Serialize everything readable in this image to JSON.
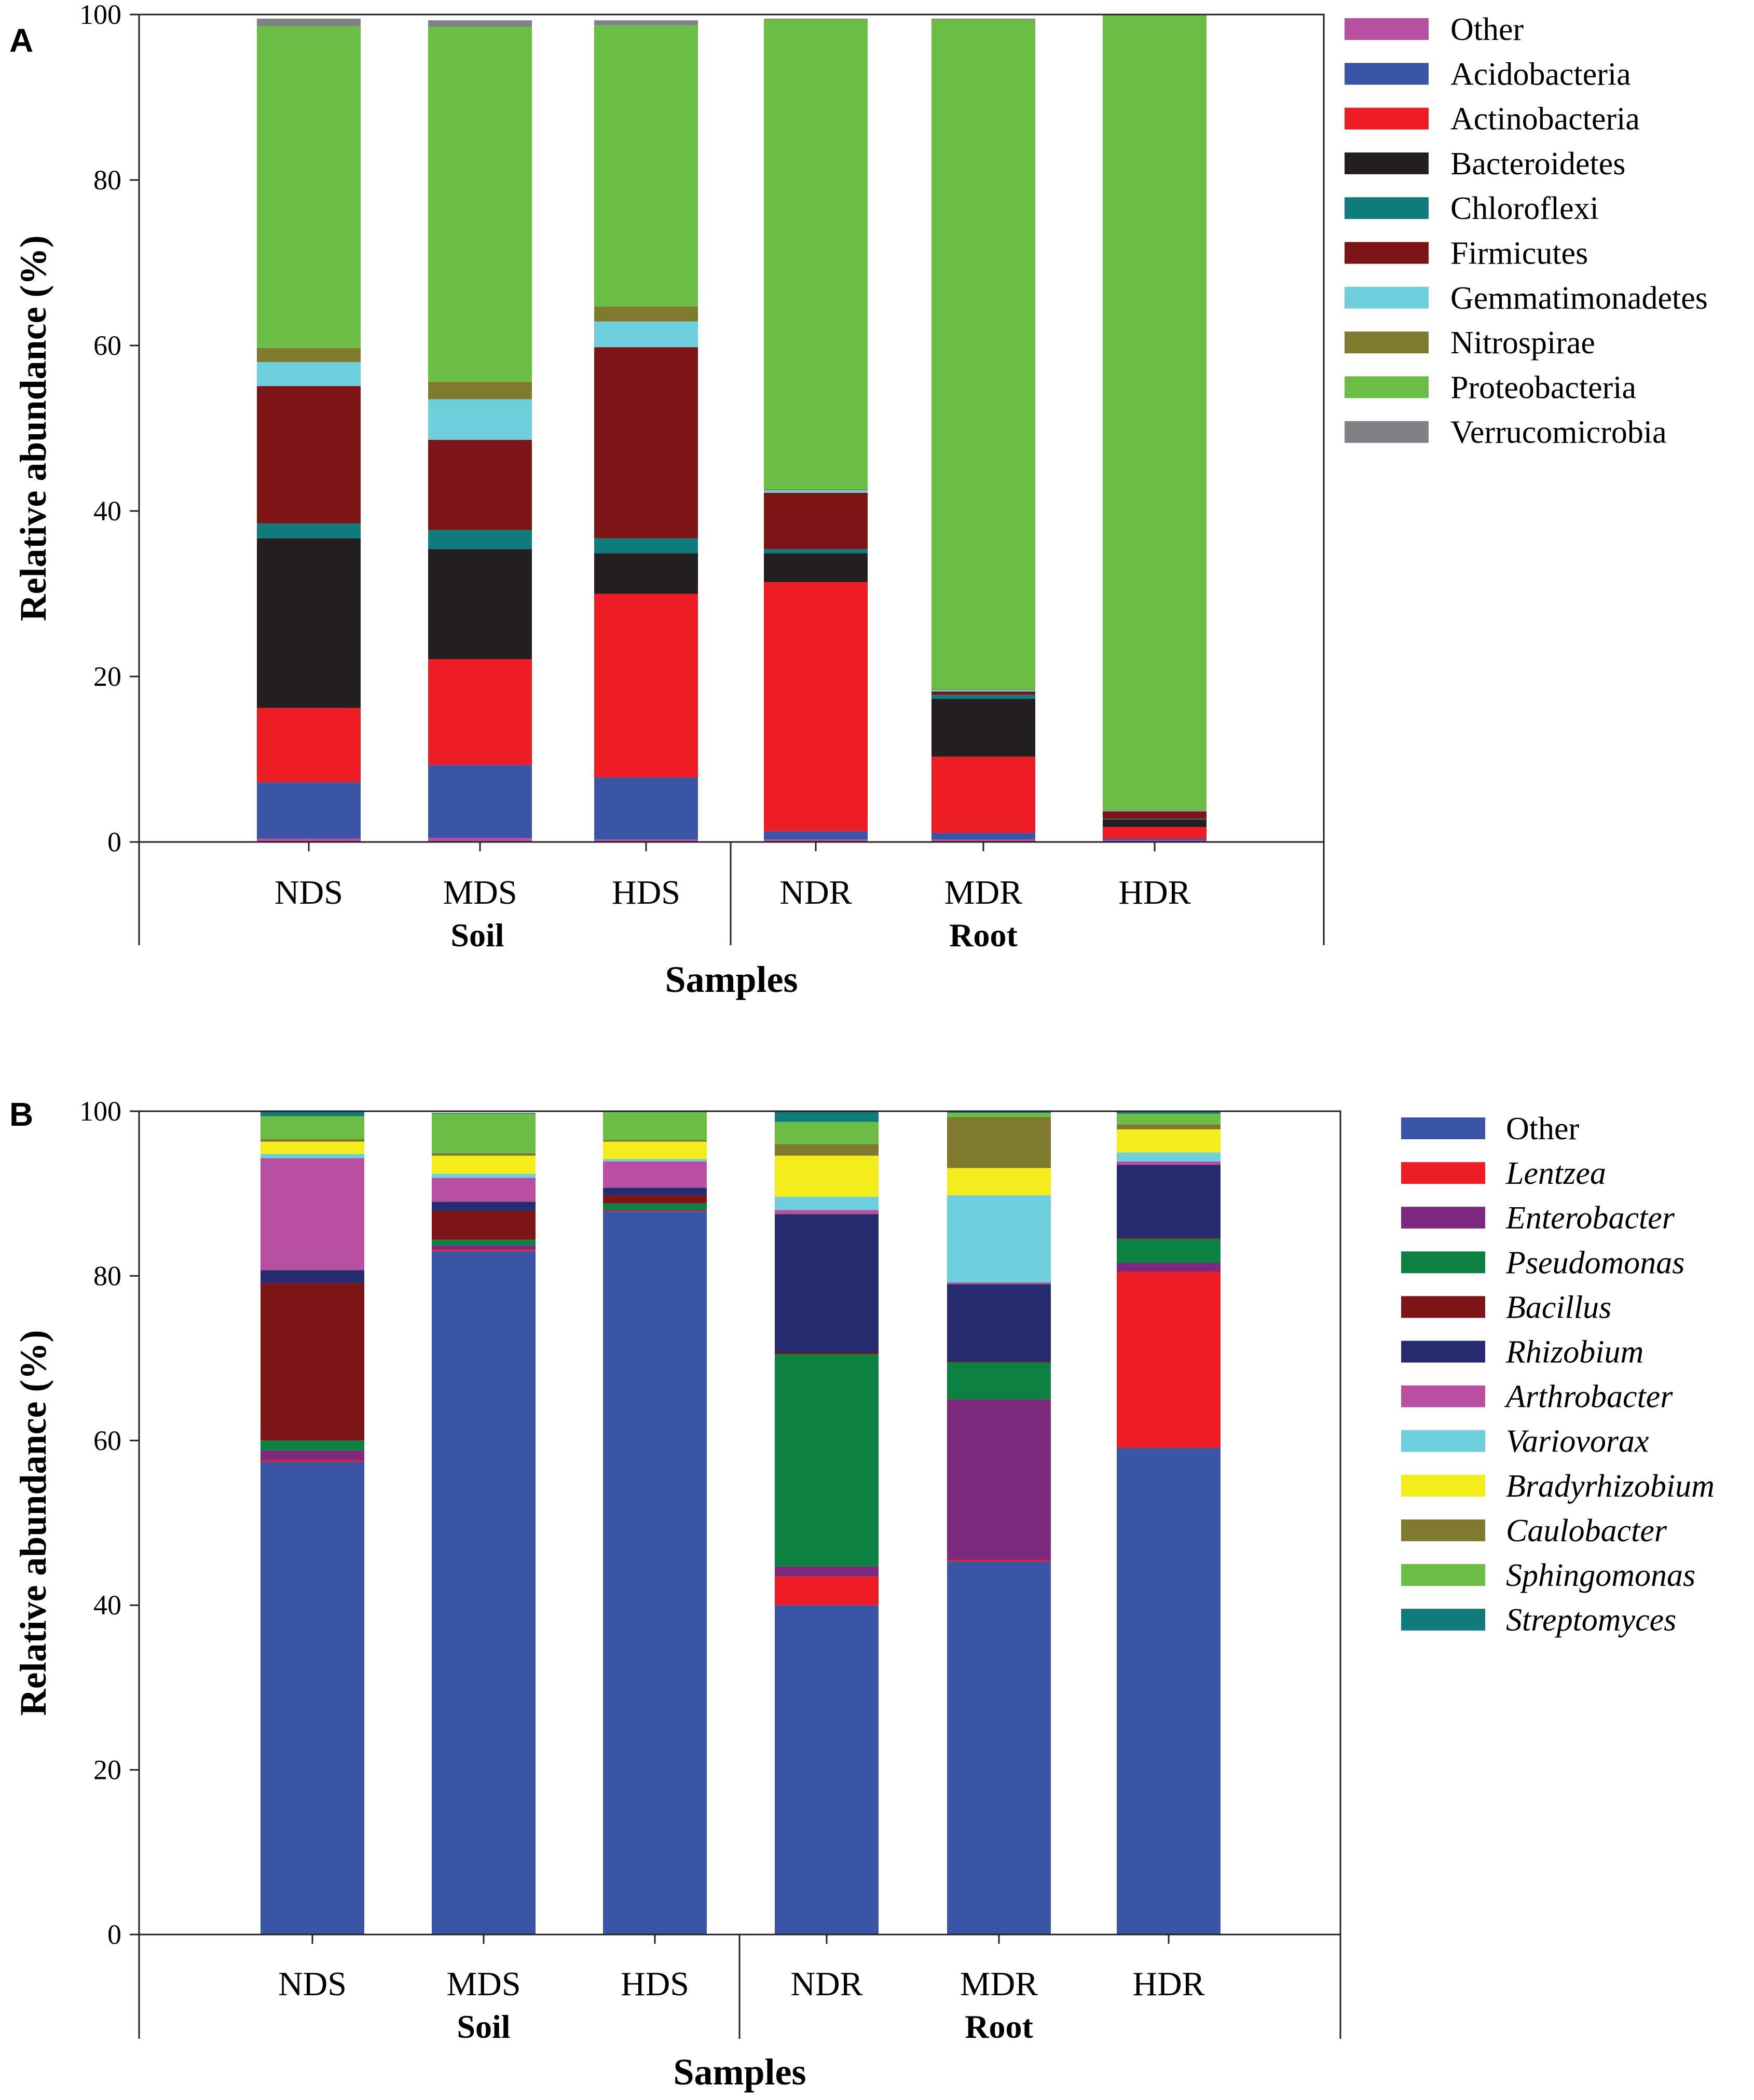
{
  "chart_data": [
    {
      "panel": "A",
      "type": "bar",
      "stacked": true,
      "ylabel": "Relative abundance (%)",
      "xlabel": "Samples",
      "ylim": [
        0,
        100
      ],
      "yticks": [
        0,
        20,
        40,
        60,
        80,
        100
      ],
      "categories": [
        "NDS",
        "MDS",
        "HDS",
        "NDR",
        "MDR",
        "HDR"
      ],
      "groups": [
        {
          "label": "Soil",
          "categories": [
            "NDS",
            "MDS",
            "HDS"
          ]
        },
        {
          "label": "Root",
          "categories": [
            "NDR",
            "MDR",
            "HDR"
          ]
        }
      ],
      "legend_position": "right",
      "series": [
        {
          "name": "Other",
          "italic": false,
          "color": "#b84fa0",
          "values": [
            0.4,
            0.5,
            0.3,
            0.3,
            0.3,
            0.2
          ]
        },
        {
          "name": "Acidobacteria",
          "italic": false,
          "color": "#3a55a6",
          "values": [
            6.8,
            8.8,
            7.5,
            1.0,
            0.8,
            0.2
          ]
        },
        {
          "name": "Actinobacteria",
          "italic": false,
          "color": "#ee1d25",
          "values": [
            9.0,
            12.8,
            22.2,
            30.1,
            9.2,
            1.4
          ]
        },
        {
          "name": "Bacteroidetes",
          "italic": false,
          "color": "#231f20",
          "values": [
            20.5,
            13.3,
            4.9,
            3.5,
            7.0,
            0.9
          ]
        },
        {
          "name": "Chloroflexi",
          "italic": false,
          "color": "#0f7b7b",
          "values": [
            1.8,
            2.3,
            1.8,
            0.5,
            0.5,
            0.1
          ]
        },
        {
          "name": "Firmicutes",
          "italic": false,
          "color": "#7d1416",
          "values": [
            16.6,
            10.9,
            23.1,
            6.8,
            0.4,
            0.9
          ]
        },
        {
          "name": "Gemmatimonadetes",
          "italic": false,
          "color": "#6dcfdb",
          "values": [
            2.9,
            4.9,
            3.1,
            0.3,
            0.2,
            0.1
          ]
        },
        {
          "name": "Nitrospirae",
          "italic": false,
          "color": "#7f7a2e",
          "values": [
            1.7,
            2.1,
            1.8,
            0.1,
            0.1,
            0.1
          ]
        },
        {
          "name": "Proteobacteria",
          "italic": false,
          "color": "#6cbd45",
          "values": [
            38.9,
            42.9,
            34.0,
            56.8,
            80.9,
            96.0
          ]
        },
        {
          "name": "Verrucomicrobia",
          "italic": false,
          "color": "#808184",
          "values": [
            0.9,
            0.8,
            0.6,
            0.1,
            0.1,
            0.1
          ]
        }
      ]
    },
    {
      "panel": "B",
      "type": "bar",
      "stacked": true,
      "ylabel": "Relative abundance (%)",
      "xlabel": "Samples",
      "ylim": [
        0,
        100
      ],
      "yticks": [
        0,
        20,
        40,
        60,
        80,
        100
      ],
      "categories": [
        "NDS",
        "MDS",
        "HDS",
        "NDR",
        "MDR",
        "HDR"
      ],
      "groups": [
        {
          "label": "Soil",
          "categories": [
            "NDS",
            "MDS",
            "HDS"
          ]
        },
        {
          "label": "Root",
          "categories": [
            "NDR",
            "MDR",
            "HDR"
          ]
        }
      ],
      "legend_position": "right",
      "series": [
        {
          "name": "Other",
          "italic": false,
          "color": "#3a55a6",
          "values": [
            57.4,
            83.0,
            87.8,
            40.0,
            45.3,
            59.1
          ]
        },
        {
          "name": "Lentzea",
          "italic": true,
          "color": "#ee1d25",
          "values": [
            0.2,
            0.2,
            0.1,
            3.5,
            0.2,
            21.4
          ]
        },
        {
          "name": "Enterobacter",
          "italic": true,
          "color": "#7d2a7e",
          "values": [
            1.2,
            0.5,
            0.1,
            1.2,
            19.5,
            1.1
          ]
        },
        {
          "name": "Pseudomonas",
          "italic": true,
          "color": "#0c8142",
          "values": [
            1.2,
            0.7,
            0.8,
            25.8,
            4.5,
            2.9
          ]
        },
        {
          "name": "Bacillus",
          "italic": true,
          "color": "#7d1416",
          "values": [
            19.1,
            3.5,
            1.0,
            0.2,
            0.1,
            0.1
          ]
        },
        {
          "name": "Rhizobium",
          "italic": true,
          "color": "#262a6e",
          "values": [
            1.6,
            1.1,
            0.9,
            16.8,
            9.4,
            8.9
          ]
        },
        {
          "name": "Arthrobacter",
          "italic": true,
          "color": "#b84fa0",
          "values": [
            13.6,
            2.9,
            3.2,
            0.5,
            0.2,
            0.4
          ]
        },
        {
          "name": "Variovorax",
          "italic": true,
          "color": "#6dcfdb",
          "values": [
            0.5,
            0.5,
            0.3,
            1.6,
            10.6,
            1.1
          ]
        },
        {
          "name": "Bradyrhizobium",
          "italic": true,
          "color": "#f5ec1b",
          "values": [
            1.5,
            2.2,
            2.1,
            5.0,
            3.3,
            2.8
          ]
        },
        {
          "name": "Caulobacter",
          "italic": true,
          "color": "#7f7a2e",
          "values": [
            0.3,
            0.3,
            0.2,
            1.4,
            6.2,
            0.6
          ]
        },
        {
          "name": "Sphingomonas",
          "italic": true,
          "color": "#6cbd45",
          "values": [
            2.8,
            4.8,
            3.4,
            2.7,
            0.5,
            1.3
          ]
        },
        {
          "name": "Streptomyces",
          "italic": true,
          "color": "#0f7b7b",
          "values": [
            0.6,
            0.1,
            0.1,
            1.3,
            0.2,
            0.2
          ]
        }
      ]
    }
  ]
}
